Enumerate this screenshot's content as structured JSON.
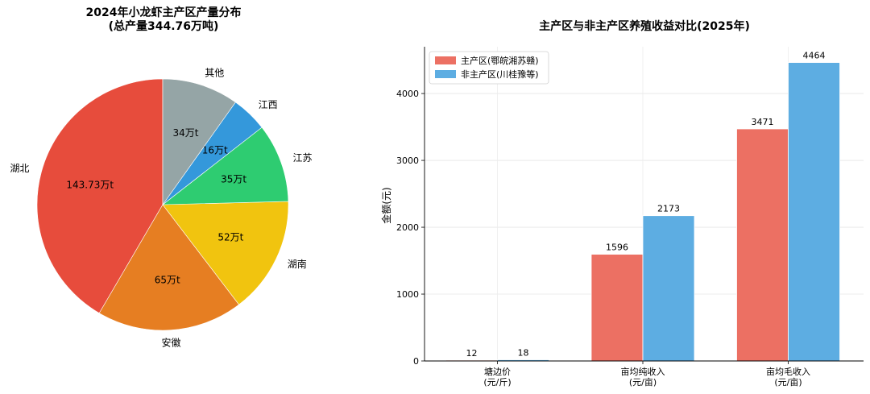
{
  "chart_data": [
    {
      "type": "pie",
      "title_line1": "2024年小龙虾主产区产量分布",
      "title_line2": "(总产量344.76万吨)",
      "slices": [
        {
          "name": "湖北",
          "value": 143.73,
          "label": "143.73万t",
          "color": "#e74c3c"
        },
        {
          "name": "安徽",
          "value": 65,
          "label": "65万t",
          "color": "#e67e22"
        },
        {
          "name": "湖南",
          "value": 52,
          "label": "52万t",
          "color": "#f1c40f"
        },
        {
          "name": "江苏",
          "value": 35,
          "label": "35万t",
          "color": "#2ecc71"
        },
        {
          "name": "江西",
          "value": 16,
          "label": "16万t",
          "color": "#3498db"
        },
        {
          "name": "其他",
          "value": 34,
          "label": "34万t",
          "color": "#95a5a6"
        }
      ]
    },
    {
      "type": "bar",
      "title": "主产区与非主产区养殖收益对比(2025年)",
      "ylabel": "金额(元)",
      "ylim": [
        0,
        4700
      ],
      "yticks": [
        0,
        1000,
        2000,
        3000,
        4000
      ],
      "categories": [
        {
          "line1": "塘边价",
          "line2": "(元/斤)"
        },
        {
          "line1": "亩均纯收入",
          "line2": "(元/亩)"
        },
        {
          "line1": "亩均毛收入",
          "line2": "(元/亩)"
        }
      ],
      "series": [
        {
          "name": "主产区(鄂皖湘苏赣)",
          "values": [
            12,
            1596,
            3471
          ],
          "color": "#ec7063"
        },
        {
          "name": "非主产区(川桂豫等)",
          "values": [
            18,
            2173,
            4464
          ],
          "color": "#5dade2"
        }
      ],
      "legend_position": "top-left",
      "grid": true
    }
  ]
}
